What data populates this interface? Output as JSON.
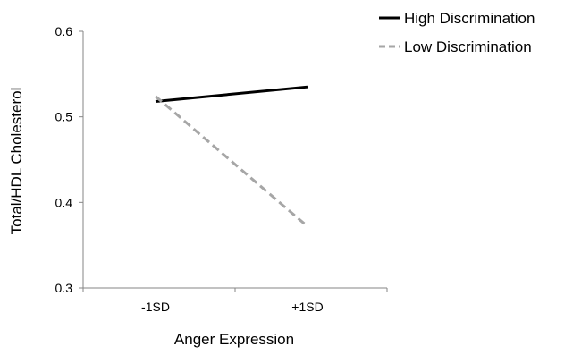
{
  "chart_data": {
    "type": "line",
    "title": "",
    "xlabel": "Anger Expression",
    "ylabel": "Total/HDL Cholesterol",
    "categories": [
      "-1SD",
      "+1SD"
    ],
    "ylim": [
      0.3,
      0.6
    ],
    "yticks": [
      0.3,
      0.4,
      0.5,
      0.6
    ],
    "ytick_labels": [
      "0.3",
      "0.4",
      "0.5",
      "0.6"
    ],
    "grid": false,
    "legend_position": "top-right",
    "series": [
      {
        "name": "High Discrimination",
        "values": [
          0.518,
          0.535
        ],
        "color": "#000000",
        "style": "solid"
      },
      {
        "name": "Low Discrimination",
        "values": [
          0.524,
          0.372
        ],
        "color": "#a6a6a6",
        "style": "dashed"
      }
    ]
  }
}
